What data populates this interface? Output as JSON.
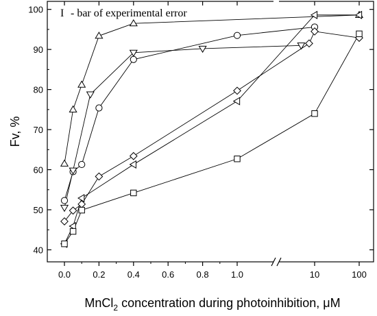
{
  "chart_data": {
    "type": "line",
    "xlabel": "MnCl2 concentration during photoinhibition, μM",
    "xlabel_parts": {
      "pre": "MnCl",
      "sub": "2",
      "post": " concentration during photoinhibition, μM"
    },
    "ylabel": "Fv, %",
    "ylim": [
      37,
      102
    ],
    "y_ticks": [
      40,
      50,
      60,
      70,
      80,
      90,
      100
    ],
    "x_scale": "broken: linear 0–1.0, then log 10–100",
    "x_ticks": [
      {
        "value": 0.0,
        "label": "0.0"
      },
      {
        "value": 0.2,
        "label": "0.2"
      },
      {
        "value": 0.4,
        "label": "0.4"
      },
      {
        "value": 0.6,
        "label": "0.6"
      },
      {
        "value": 0.8,
        "label": "0.8"
      },
      {
        "value": 1.0,
        "label": "1.0"
      },
      {
        "value": 10,
        "label": "10"
      },
      {
        "value": 100,
        "label": "100"
      }
    ],
    "legend": {
      "symbol": "I",
      "text": "- bar of experimental error",
      "placement": "top-left"
    },
    "grid": false,
    "series": [
      {
        "marker": "triangle-up",
        "x": [
          0,
          0.05,
          0.1,
          0.2,
          0.4,
          100
        ],
        "y": [
          61.5,
          75,
          81.2,
          93.4,
          96.5,
          98.6
        ]
      },
      {
        "marker": "circle",
        "x": [
          0,
          0.05,
          0.1,
          0.2,
          0.4,
          1.0,
          10
        ],
        "y": [
          52.3,
          59.5,
          61.3,
          75.4,
          87.5,
          93.5,
          95.6
        ]
      },
      {
        "marker": "triangle-down",
        "x": [
          0,
          0.05,
          0.15,
          0.4,
          0.8,
          3.5
        ],
        "y": [
          50.5,
          59.8,
          78.8,
          89.2,
          90.2,
          91
        ]
      },
      {
        "marker": "diamond",
        "x": [
          0,
          0.05,
          0.1,
          0.2,
          0.4,
          1.0,
          6.5,
          10,
          100
        ],
        "y": [
          47.1,
          49.8,
          51.4,
          58.3,
          63.4,
          79.7,
          91.5,
          94.5,
          92.9
        ]
      },
      {
        "marker": "triangle-left",
        "x": [
          0,
          0.05,
          0.1,
          0.4,
          1.0,
          10,
          100
        ],
        "y": [
          41.5,
          45.9,
          52.9,
          61.3,
          77.1,
          98.6,
          98.6
        ]
      },
      {
        "marker": "square",
        "x": [
          0,
          0.05,
          0.1,
          0.4,
          1.0,
          10,
          100
        ],
        "y": [
          41.5,
          44.6,
          49.9,
          54.2,
          62.7,
          74,
          93.9
        ]
      }
    ]
  }
}
